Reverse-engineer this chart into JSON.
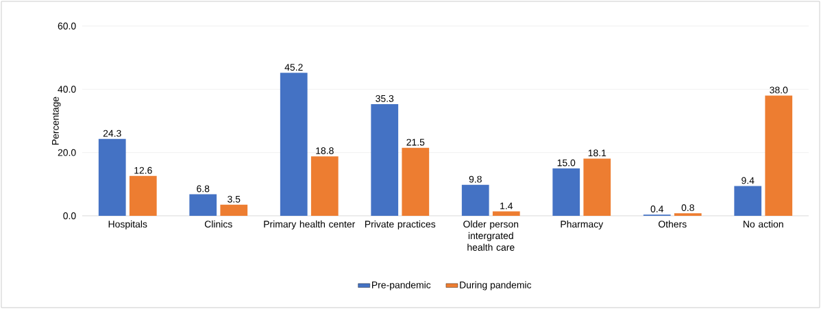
{
  "chart_data": {
    "type": "bar",
    "ylabel": "Percentage",
    "categories": [
      "Hospitals",
      "Clinics",
      "Primary health center",
      "Private practices",
      "Older person intergrated health care",
      "Pharmacy",
      "Others",
      "No action"
    ],
    "series": [
      {
        "name": "Pre-pandemic",
        "color": "#4472c4",
        "values": [
          24.3,
          6.8,
          45.2,
          35.3,
          9.8,
          15.0,
          0.4,
          9.4
        ],
        "value_labels": [
          "24.3",
          "6.8",
          "45.2",
          "35.3",
          "9.8",
          "15.0",
          "0.4",
          "9.4"
        ]
      },
      {
        "name": "During pandemic",
        "color": "#ed7d31",
        "values": [
          12.6,
          3.5,
          18.8,
          21.5,
          1.4,
          18.1,
          0.8,
          38.0
        ],
        "value_labels": [
          "12.6",
          "3.5",
          "18.8",
          "21.5",
          "1.4",
          "18.1",
          "0.8",
          "38.0"
        ]
      }
    ],
    "ylim": [
      0,
      60
    ],
    "yticks": [
      {
        "value": 0,
        "label": "0.0"
      },
      {
        "value": 20,
        "label": "20.0"
      },
      {
        "value": 40,
        "label": "40.0"
      },
      {
        "value": 60,
        "label": "60.0"
      }
    ],
    "grid": "y",
    "legend": "bottom"
  }
}
